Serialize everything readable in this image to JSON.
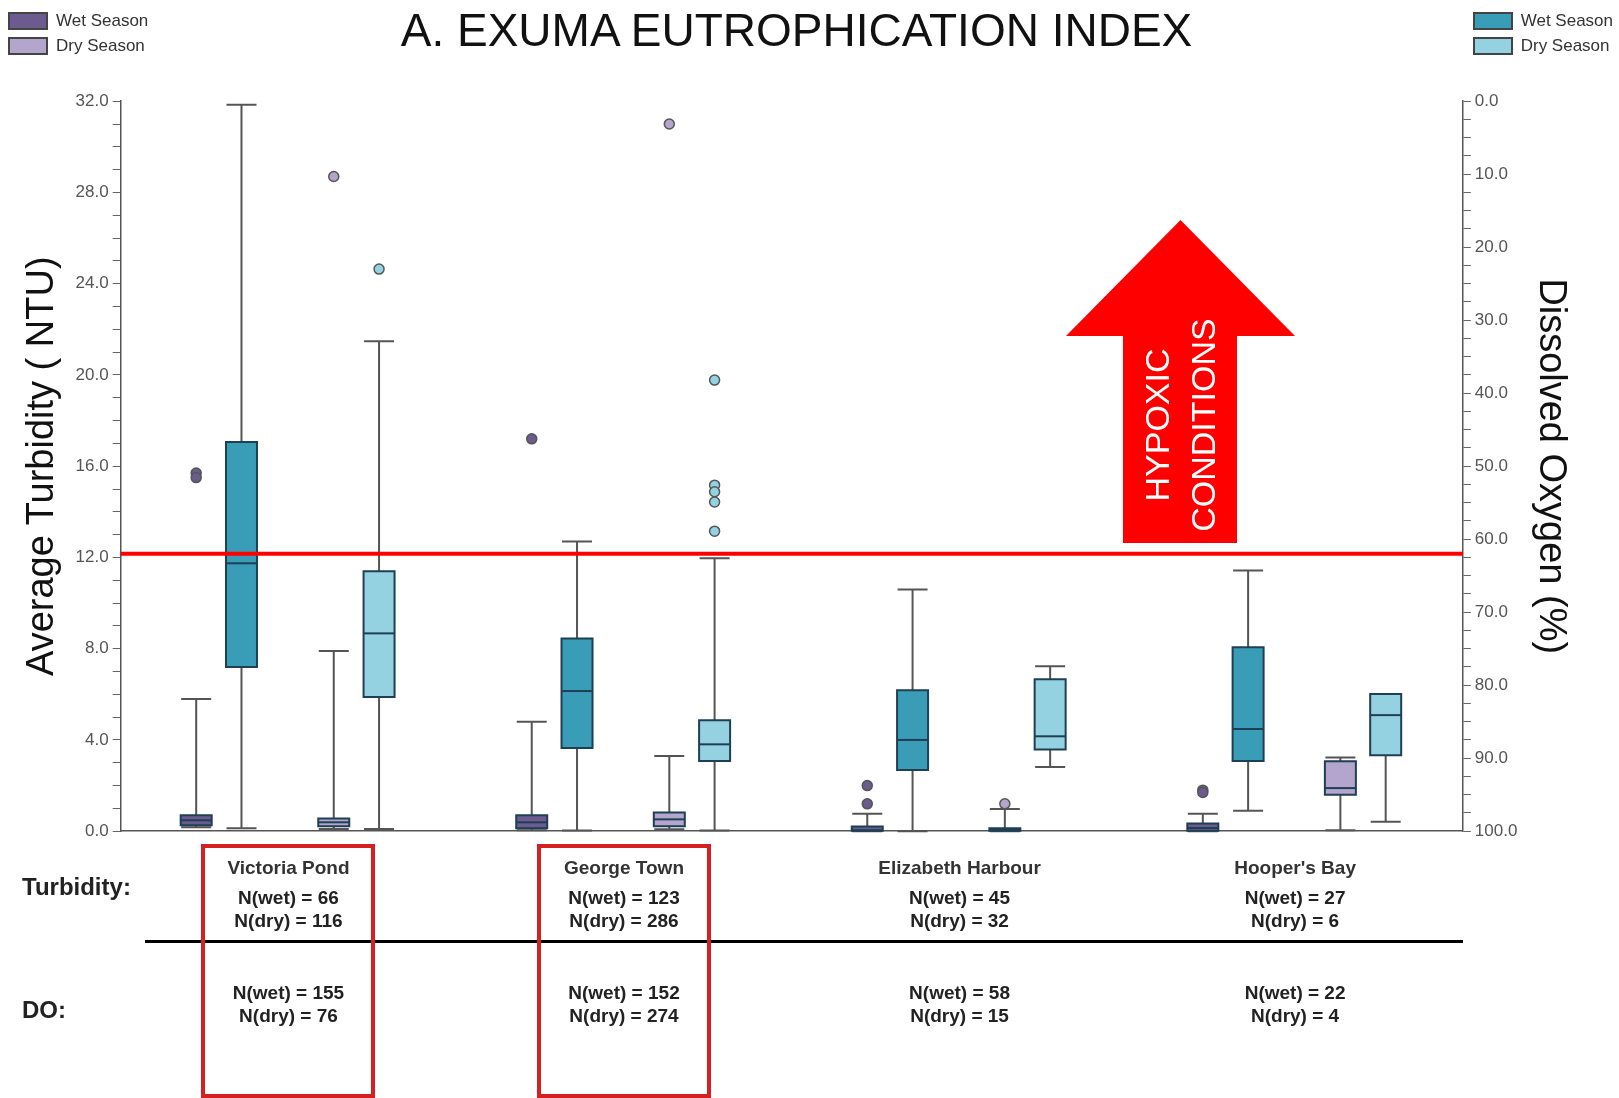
{
  "chart_data": {
    "type": "box",
    "title": "A. EXUMA EUTROPHICATION INDEX",
    "ylabel": "Average Turbidity ( NTU)",
    "y2label": "Dissolved Oxygen (%)",
    "categories": [
      "Victoria Pond",
      "George Town",
      "Elizabeth Harbour",
      "Hooper's Bay"
    ],
    "series": [
      {
        "name": "Wet Season",
        "color": "#6b5b8e",
        "axis": "y",
        "boxes": [
          {
            "low": 0.17,
            "q1": 0.26,
            "median": 0.48,
            "q3": 0.7,
            "high": 5.8,
            "outliers": [
              15.7,
              15.5
            ]
          },
          {
            "low": 0.04,
            "q1": 0.13,
            "median": 0.39,
            "q3": 0.7,
            "high": 4.8,
            "outliers": [
              17.2
            ]
          },
          {
            "low": 0,
            "q1": 0.02,
            "median": 0.04,
            "q3": 0.21,
            "high": 0.76,
            "outliers": [
              2.0,
              1.2
            ]
          },
          {
            "low": 0,
            "q1": 0.02,
            "median": 0.14,
            "q3": 0.34,
            "high": 0.76,
            "outliers": [
              1.8,
              1.7
            ]
          }
        ]
      },
      {
        "name": "Wet Season",
        "color": "#3a9db8",
        "axis": "y2",
        "boxes": [
          {
            "low": 0.5,
            "q1": 46.7,
            "median": 63.3,
            "q3": 77.5,
            "high": 99.6
          },
          {
            "low": 60.3,
            "q1": 73.6,
            "median": 80.8,
            "q3": 88.6,
            "high": 99.9
          },
          {
            "low": 66.9,
            "q1": 80.7,
            "median": 87.5,
            "q3": 91.6,
            "high": 100
          },
          {
            "low": 64.3,
            "q1": 74.8,
            "median": 86.0,
            "q3": 90.4,
            "high": 97.2
          }
        ]
      },
      {
        "name": "Dry Season",
        "color": "#b4a5cc",
        "axis": "y",
        "boxes": [
          {
            "low": 0.1,
            "q1": 0.22,
            "median": 0.39,
            "q3": 0.56,
            "high": 7.9,
            "outliers": [
              28.7
            ]
          },
          {
            "low": 0.09,
            "q1": 0.22,
            "median": 0.52,
            "q3": 0.82,
            "high": 3.3,
            "outliers": [
              31.0
            ]
          },
          {
            "low": 0,
            "q1": 0.02,
            "median": 0.08,
            "q3": 0.13,
            "high": 0.97,
            "outliers": [
              1.2
            ]
          },
          {
            "low": 0.04,
            "q1": 1.6,
            "median": 1.89,
            "q3": 3.07,
            "high": 3.23
          }
        ]
      },
      {
        "name": "Dry Season",
        "color": "#94d2e2",
        "axis": "y2",
        "boxes": [
          {
            "low": 32.9,
            "q1": 64.4,
            "median": 72.9,
            "q3": 81.6,
            "high": 99.7,
            "outliers": [
              23.0
            ]
          },
          {
            "low": 62.6,
            "q1": 84.8,
            "median": 88.1,
            "q3": 90.4,
            "high": 99.9,
            "outliers": [
              38.2,
              52.6,
              53.5,
              54.9,
              58.9
            ]
          },
          {
            "low": 77.4,
            "q1": 79.2,
            "median": 87.0,
            "q3": 88.8,
            "high": 91.2
          },
          {
            "low": 81.2,
            "q1": 81.2,
            "median": 84.1,
            "q3": 89.6,
            "high": 98.7
          }
        ]
      }
    ],
    "ylim": [
      0,
      32
    ],
    "yticks": [
      {
        "value": 0,
        "label": "0.0"
      },
      {
        "value": 4,
        "label": "4.0"
      },
      {
        "value": 8,
        "label": "8.0"
      },
      {
        "value": 12,
        "label": "12.0"
      },
      {
        "value": 16,
        "label": "16.0"
      },
      {
        "value": 20,
        "label": "20.0"
      },
      {
        "value": 24,
        "label": "24.0"
      },
      {
        "value": 28,
        "label": "28.0"
      },
      {
        "value": 32,
        "label": "32.0"
      },
      {
        "value": 1,
        "label": null
      },
      {
        "value": 2,
        "label": null
      },
      {
        "value": 3,
        "label": null
      },
      {
        "value": 5,
        "label": null
      },
      {
        "value": 6,
        "label": null
      },
      {
        "value": 7,
        "label": null
      },
      {
        "value": 9,
        "label": null
      },
      {
        "value": 10,
        "label": null
      },
      {
        "value": 11,
        "label": null
      },
      {
        "value": 13,
        "label": null
      },
      {
        "value": 14,
        "label": null
      },
      {
        "value": 15,
        "label": null
      },
      {
        "value": 17,
        "label": null
      },
      {
        "value": 18,
        "label": null
      },
      {
        "value": 19,
        "label": null
      },
      {
        "value": 21,
        "label": null
      },
      {
        "value": 22,
        "label": null
      },
      {
        "value": 23,
        "label": null
      },
      {
        "value": 25,
        "label": null
      },
      {
        "value": 26,
        "label": null
      },
      {
        "value": 27,
        "label": null
      },
      {
        "value": 29,
        "label": null
      },
      {
        "value": 30,
        "label": null
      },
      {
        "value": 31,
        "label": null
      }
    ],
    "y2lim": [
      100,
      0
    ],
    "y2ticks": [
      {
        "value": 0,
        "label": "0.0"
      },
      {
        "value": 10,
        "label": "10.0"
      },
      {
        "value": 20,
        "label": "20.0"
      },
      {
        "value": 30,
        "label": "30.0"
      },
      {
        "value": 40,
        "label": "40.0"
      },
      {
        "value": 50,
        "label": "50.0"
      },
      {
        "value": 60,
        "label": "60.0"
      },
      {
        "value": 70,
        "label": "70.0"
      },
      {
        "value": 80,
        "label": "80.0"
      },
      {
        "value": 90,
        "label": "90.0"
      },
      {
        "value": 100,
        "label": "100.0"
      },
      {
        "value": 2.5,
        "label": null
      },
      {
        "value": 5,
        "label": null
      },
      {
        "value": 7.5,
        "label": null
      },
      {
        "value": 12.5,
        "label": null
      },
      {
        "value": 15,
        "label": null
      },
      {
        "value": 17.5,
        "label": null
      },
      {
        "value": 22.5,
        "label": null
      },
      {
        "value": 25,
        "label": null
      },
      {
        "value": 27.5,
        "label": null
      },
      {
        "value": 32.5,
        "label": null
      },
      {
        "value": 35,
        "label": null
      },
      {
        "value": 37.5,
        "label": null
      },
      {
        "value": 42.5,
        "label": null
      },
      {
        "value": 45,
        "label": null
      },
      {
        "value": 47.5,
        "label": null
      },
      {
        "value": 52.5,
        "label": null
      },
      {
        "value": 55,
        "label": null
      },
      {
        "value": 57.5,
        "label": null
      },
      {
        "value": 62.5,
        "label": null
      },
      {
        "value": 65,
        "label": null
      },
      {
        "value": 67.5,
        "label": null
      },
      {
        "value": 72.5,
        "label": null
      },
      {
        "value": 75,
        "label": null
      },
      {
        "value": 77.5,
        "label": null
      },
      {
        "value": 82.5,
        "label": null
      },
      {
        "value": 85,
        "label": null
      },
      {
        "value": 87.5,
        "label": null
      },
      {
        "value": 92.5,
        "label": null
      },
      {
        "value": 95,
        "label": null
      },
      {
        "value": 97.5,
        "label": null
      }
    ],
    "ref_lines": [
      {
        "axis": "y2",
        "value": 62,
        "color": "#ff0000"
      }
    ],
    "legend": "top",
    "annotations": [
      "Turbidity:",
      "N(wet) = 66\nN(dry) = 116",
      "N(wet) = 123\nN(dry) = 286",
      "N(wet) = 45\nN(dry) = 32",
      "N(wet) = 27\nN(dry) = 6",
      "DO:",
      "N(wet) = 155\nN(dry) = 76",
      "N(wet) = 152\nN(dry) = 274",
      "N(wet) = 58\nN(dry) = 15",
      "N(wet) = 22\nN(dry) = 4",
      "HYPOXIC CONDITIONS"
    ]
  }
}
